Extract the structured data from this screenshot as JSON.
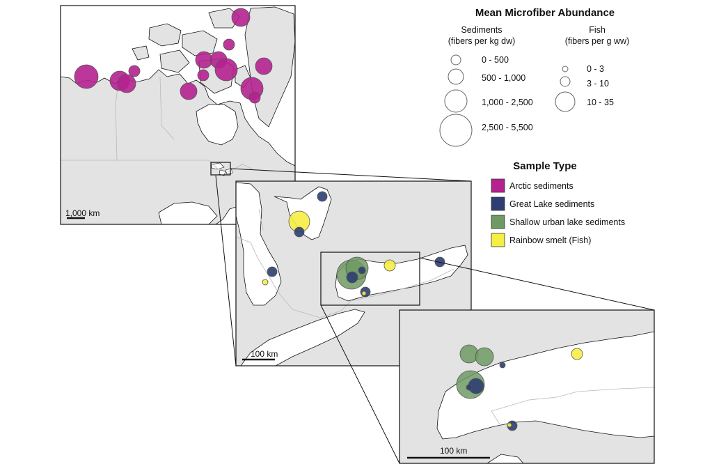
{
  "legend": {
    "title": "Mean Microfiber Abundance",
    "sediments_heading": "Sediments",
    "sediments_unit": "(fibers per kg dw)",
    "fish_heading": "Fish",
    "fish_unit": "(fibers per g ww)",
    "sediment_classes": [
      "0 - 500",
      "500 - 1,000",
      "1,000 - 2,500",
      "2,500 - 5,500"
    ],
    "fish_classes": [
      "0 - 3",
      "3 - 10",
      "10 - 35"
    ],
    "sample_type_title": "Sample Type",
    "sample_types": [
      {
        "label": "Arctic sediments",
        "color": "#b5218f"
      },
      {
        "label": "Great Lake sediments",
        "color": "#2e3e72"
      },
      {
        "label": "Shallow urban lake sediments",
        "color": "#6f9a63"
      },
      {
        "label": "Rainbow smelt (Fish)",
        "color": "#f5ee44"
      }
    ]
  },
  "scale_bars": {
    "overview": "1,000 km",
    "great_lakes": "100 km",
    "lake_ontario": "100 km"
  },
  "colors": {
    "land": "#e3e3e3",
    "water": "#ffffff",
    "coast": "#111111",
    "border": "#b9b9b9",
    "circle_stroke": "#555555"
  }
}
